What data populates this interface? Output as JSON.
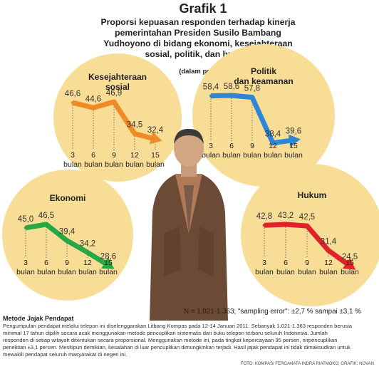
{
  "header": {
    "title": "Grafik 1",
    "subtitle_lines": [
      "Proporsi kepuasan responden terhadap kinerja",
      "pemerintahan Presiden Susilo Bambang",
      "Yudhoyono di bidang ekonomi, kesejahteraan",
      "sosial, politik, dan hukum"
    ],
    "unit": "(dalam persen)"
  },
  "colors": {
    "circle_fill": "#f8dd97",
    "kesejahteraan": "#f08a24",
    "politik": "#2f86d6",
    "ekonomi": "#28a745",
    "hukum": "#e0232a"
  },
  "tick_line1": [
    "3",
    "6",
    "9",
    "12",
    "15"
  ],
  "tick_line2": "bulan",
  "chart_data": [
    {
      "type": "line",
      "title_lines": [
        "Kesejahteraan",
        "sosial"
      ],
      "categories": [
        "3 bulan",
        "6 bulan",
        "9 bulan",
        "12 bulan",
        "15 bulan"
      ],
      "values": [
        46.6,
        44.6,
        46.9,
        34.5,
        32.4
      ],
      "labels": [
        "46,6",
        "44,6",
        "46,9",
        "34,5",
        "32,4"
      ],
      "color": "#f08a24"
    },
    {
      "type": "line",
      "title_lines": [
        "Politik",
        "dan keamanan"
      ],
      "categories": [
        "3 bulan",
        "6 bulan",
        "9 bulan",
        "12 bulan",
        "15 bulan"
      ],
      "values": [
        58.4,
        58.6,
        57.8,
        38.4,
        39.6
      ],
      "labels": [
        "58,4",
        "58,6",
        "57,8",
        "38,4",
        "39,6"
      ],
      "color": "#2f86d6"
    },
    {
      "type": "line",
      "title_lines": [
        "Ekonomi"
      ],
      "categories": [
        "3 bulan",
        "6 bulan",
        "9 bulan",
        "12 bulan",
        "15 bulan"
      ],
      "values": [
        45.0,
        46.5,
        39.4,
        34.2,
        28.6
      ],
      "labels": [
        "45,0",
        "46,5",
        "39,4",
        "34,2",
        "28,6"
      ],
      "color": "#28a745"
    },
    {
      "type": "line",
      "title_lines": [
        "Hukum"
      ],
      "categories": [
        "3 bulan",
        "6 bulan",
        "9 bulan",
        "12 bulan",
        "15 bulan"
      ],
      "values": [
        42.8,
        43.2,
        42.5,
        31.4,
        24.5
      ],
      "labels": [
        "42,8",
        "43,2",
        "42,5",
        "31,4",
        "24,5"
      ],
      "color": "#e0232a"
    }
  ],
  "stats": "N = 1.021-1.363; \"sampling error\": ±2,7 % sampai ±3,1 %",
  "method": {
    "title": "Metode Jajak Pendapat",
    "text": "Pengumpulan pendapat melalui telepon ini diselenggarakan Litbang Kompas pada 12-14 Januari 2011. Sebanyak 1.021-1.363 responden berusia minimal 17 tahun dipilih secara acak menggunakan metode pencuplikan sistematis dari buku telepon terbaru seluruh Indonesia. Jumlah responden di setiap wilayah ditentukan secara proporsional. Menggunakan metode ini, pada tingkat kepercayaan 95 persen, nirpencuplikan penelitian ±3,1 persen. Meskipun demikian, kesalahan di luar pencuplikan dimungkinkan terjadi. Hasil jajak pendapat ini tidak dimaksudkan untuk mewakili pendapat seluruh masyarakat di negeri ini."
  },
  "credit": "FOTO: KOMPAS/ FERGANATA INDRA RIATMOKO; GRAFIK: NOVAN"
}
